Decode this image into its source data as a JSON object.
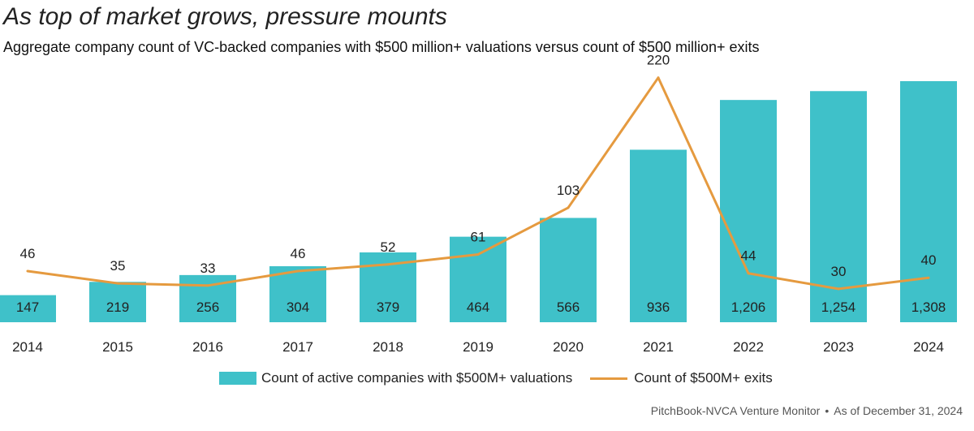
{
  "header": {
    "title": "As top of market grows, pressure mounts",
    "subtitle": "Aggregate company count of VC-backed companies with $500 million+ valuations versus count of $500 million+ exits"
  },
  "legend": {
    "bar_label": "Count of active companies with $500M+ valuations",
    "line_label": "Count of $500M+ exits"
  },
  "footer": {
    "source": "PitchBook-NVCA Venture Monitor",
    "separator": "•",
    "date": "As of December 31, 2024"
  },
  "colors": {
    "bar": "#3fc1c9",
    "line": "#e59a3f",
    "text": "#1a1a1a"
  },
  "chart_data": {
    "type": "bar",
    "categories": [
      "2014",
      "2015",
      "2016",
      "2017",
      "2018",
      "2019",
      "2020",
      "2021",
      "2022",
      "2023",
      "2024"
    ],
    "series": [
      {
        "name": "Count of active companies with $500M+ valuations",
        "type": "bar",
        "axis": "left",
        "values": [
          147,
          219,
          256,
          304,
          379,
          464,
          566,
          936,
          1206,
          1254,
          1308
        ],
        "labels": [
          "147",
          "219",
          "256",
          "304",
          "379",
          "464",
          "566",
          "936",
          "1,206",
          "1,254",
          "1,308"
        ]
      },
      {
        "name": "Count of $500M+ exits",
        "type": "line",
        "axis": "right",
        "values": [
          46,
          35,
          33,
          46,
          52,
          61,
          103,
          220,
          44,
          30,
          40
        ],
        "labels": [
          "46",
          "35",
          "33",
          "46",
          "52",
          "61",
          "103",
          "220",
          "44",
          "30",
          "40"
        ]
      }
    ],
    "ylim_left": [
      0,
      1308
    ],
    "ylim_right": [
      0,
      230
    ],
    "grid": false,
    "legend_position": "bottom-center"
  }
}
